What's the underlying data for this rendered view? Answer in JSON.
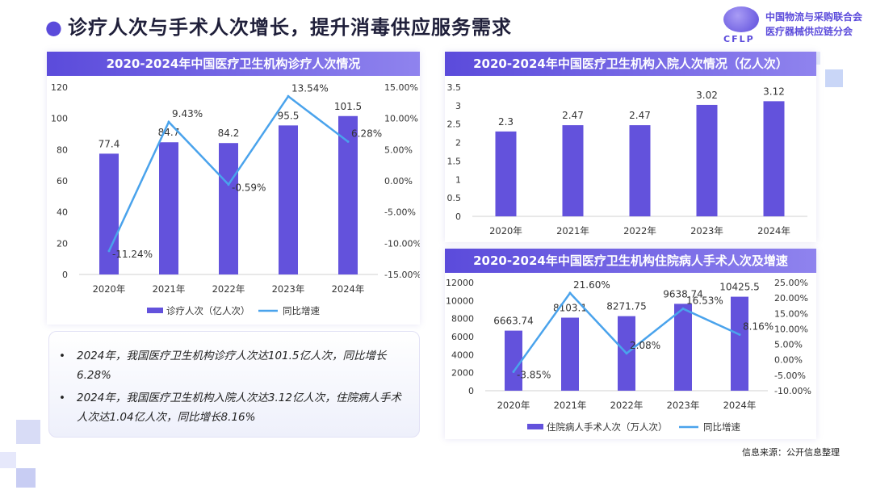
{
  "page": {
    "title": "诊疗人次与手术人次增长，提升消毒供应服务需求",
    "title_bullet": "●",
    "logo_line1": "中国物流与采购联合会",
    "logo_line2": "医疗器械供应链分会",
    "logo_abbr": "CFLP",
    "source": "信息来源：公开信息整理",
    "notes": [
      "2024年，我国医疗卫生机构诊疗人次达101.5亿人次，同比增长6.28%",
      "2024年，我国医疗卫生机构入院人次达3.12亿人次，住院病人手术人次达1.04亿人次，同比增长8.16%"
    ],
    "colors": {
      "bar": "#6352dc",
      "line": "#4aa3ec",
      "header": "#5b4bdb"
    }
  },
  "chart_data": [
    {
      "type": "bar",
      "title": "2020-2024年中国医疗卫生机构诊疗人次情况",
      "categories": [
        "2020年",
        "2021年",
        "2022年",
        "2023年",
        "2024年"
      ],
      "series": [
        {
          "name": "诊疗人次（亿人次）",
          "type": "bar",
          "axis": "left",
          "values": [
            77.4,
            84.7,
            84.2,
            95.5,
            101.5
          ],
          "labels": [
            "77.4",
            "84.7",
            "84.2",
            "95.5",
            "101.5"
          ]
        },
        {
          "name": "同比增速",
          "type": "line",
          "axis": "right",
          "values": [
            -11.24,
            9.43,
            -0.59,
            13.54,
            6.28
          ],
          "labels": [
            "-11.24%",
            "9.43%",
            "-0.59%",
            "13.54%",
            "6.28%"
          ]
        }
      ],
      "ylim": [
        0,
        120
      ],
      "y_ticks": [
        "0",
        "20",
        "40",
        "60",
        "80",
        "100",
        "120"
      ],
      "y2lim": [
        -15,
        15
      ],
      "y2_ticks": [
        "-15.00%",
        "-10.00%",
        "-5.00%",
        "0.00%",
        "5.00%",
        "10.00%",
        "15.00%"
      ],
      "grid": false,
      "legend_position": "bottom"
    },
    {
      "type": "bar",
      "title": "2020-2024年中国医疗卫生机构入院人次情况（亿人次）",
      "categories": [
        "2020年",
        "2021年",
        "2022年",
        "2023年",
        "2024年"
      ],
      "series": [
        {
          "type": "bar",
          "values": [
            2.3,
            2.47,
            2.47,
            3.02,
            3.12
          ],
          "labels": [
            "2.3",
            "2.47",
            "2.47",
            "3.02",
            "3.12"
          ]
        }
      ],
      "ylim": [
        0,
        3.5
      ],
      "y_ticks": [
        "0",
        "0.5",
        "1",
        "1.5",
        "2",
        "2.5",
        "3",
        "3.5"
      ],
      "grid": false
    },
    {
      "type": "bar",
      "title": "2020-2024年中国医疗卫生机构住院病人手术人次及增速",
      "categories": [
        "2020年",
        "2021年",
        "2022年",
        "2023年",
        "2024年"
      ],
      "series": [
        {
          "name": "住院病人手术人次（万人次）",
          "type": "bar",
          "axis": "left",
          "values": [
            6663.74,
            8103.1,
            8271.75,
            9638.74,
            10425.5
          ],
          "labels": [
            "6663.74",
            "8103.1",
            "8271.75",
            "9638.74",
            "10425.5"
          ]
        },
        {
          "name": "同比增速",
          "type": "line",
          "axis": "right",
          "values": [
            -3.85,
            21.6,
            2.08,
            16.53,
            8.16
          ],
          "labels": [
            "-3.85%",
            "21.60%",
            "2.08%",
            "16.53%",
            "8.16%"
          ]
        }
      ],
      "ylim": [
        0,
        12000
      ],
      "y_ticks": [
        "0",
        "2000",
        "4000",
        "6000",
        "8000",
        "10000",
        "12000"
      ],
      "y2lim": [
        -10,
        25
      ],
      "y2_ticks": [
        "-10.00%",
        "-5.00%",
        "0.00%",
        "5.00%",
        "10.00%",
        "15.00%",
        "20.00%",
        "25.00%"
      ],
      "grid": false,
      "legend_position": "bottom"
    }
  ]
}
